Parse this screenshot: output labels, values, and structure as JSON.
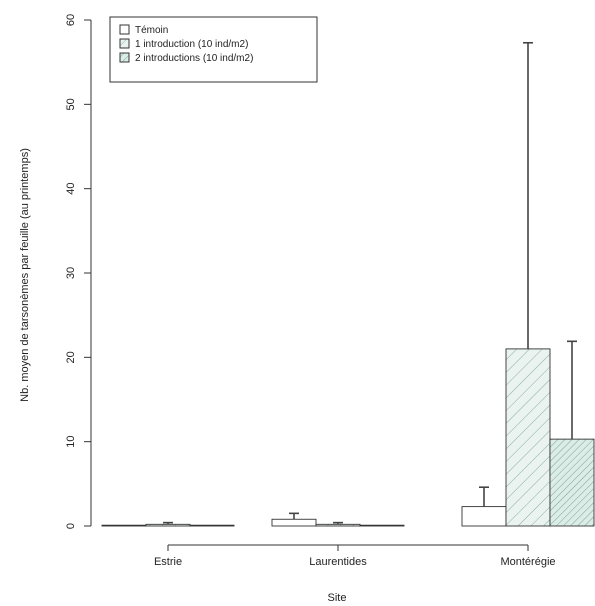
{
  "chart_data": {
    "type": "bar",
    "title": "",
    "xlabel": "Site",
    "ylabel": "Nb. moyen de tarsonèmes par feuille (au printemps)",
    "categories": [
      "Estrie",
      "Laurentides",
      "Montérégie"
    ],
    "ylim": [
      0,
      60
    ],
    "yticks": [
      0,
      10,
      20,
      30,
      40,
      50,
      60
    ],
    "legend_position": "top-left",
    "grid": false,
    "series": [
      {
        "name": "Témoin",
        "values": [
          0.0,
          0.8,
          2.3
        ],
        "error": [
          0.0,
          0.7,
          2.3
        ],
        "fill": "#ffffff",
        "pattern": "none"
      },
      {
        "name": "1 introduction (10 ind/m2)",
        "values": [
          0.2,
          0.2,
          21.0
        ],
        "error": [
          0.2,
          0.2,
          36.3
        ],
        "fill": "#e8f2ef",
        "pattern": "hatch-sparse"
      },
      {
        "name": "2 introductions (10 ind/m2)",
        "values": [
          0.0,
          0.0,
          10.3
        ],
        "error": [
          0.0,
          0.0,
          11.6
        ],
        "fill": "#d9ece6",
        "pattern": "hatch-dense"
      }
    ],
    "colors": {
      "stroke": "#333333",
      "hatch": "#5a8a78"
    }
  }
}
